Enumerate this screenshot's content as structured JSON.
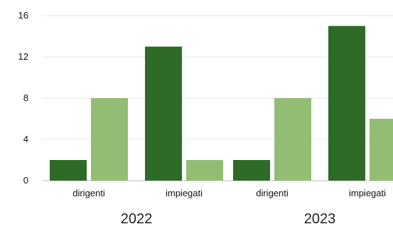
{
  "chart_data": {
    "type": "bar",
    "groups": [
      {
        "label": "2022",
        "categories": [
          "dirigenti",
          "impiegati"
        ],
        "series_values": [
          [
            2,
            13
          ],
          [
            8,
            2
          ]
        ]
      },
      {
        "label": "2023",
        "categories": [
          "dirigenti",
          "impiegati"
        ],
        "series_values": [
          [
            2,
            15
          ],
          [
            8,
            6
          ]
        ]
      }
    ],
    "series": [
      {
        "color": "#2d6b27"
      },
      {
        "color": "#93bd74"
      }
    ],
    "y_ticks": [
      "0",
      "4",
      "8",
      "12",
      "16"
    ],
    "ylim": [
      0,
      16
    ],
    "grid": true,
    "legend": "none"
  }
}
